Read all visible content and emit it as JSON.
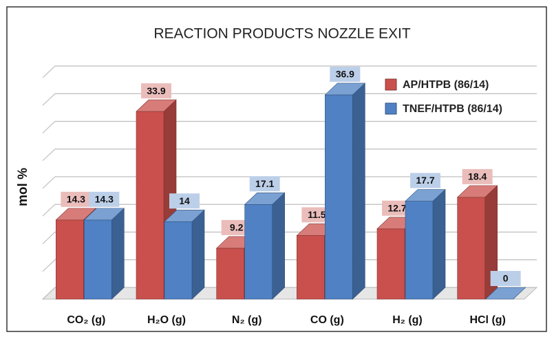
{
  "chart_data": {
    "type": "bar3d",
    "title": "REACTION PRODUCTS NOZZLE EXIT",
    "y_label": "mol %",
    "categories": [
      "CO₂ (g)",
      "H₂O (g)",
      "N₂ (g)",
      "CO (g)",
      "H₂ (g)",
      "HCl (g)"
    ],
    "series": [
      {
        "name": "AP/HTPB (86/14)",
        "color": "#c9504c",
        "values": [
          14.3,
          33.9,
          9.2,
          11.5,
          12.7,
          18.4
        ]
      },
      {
        "name": "TNEF/HTPB (86/14)",
        "color": "#4f81c4",
        "values": [
          14.3,
          14,
          17.1,
          36.9,
          17.7,
          0
        ]
      }
    ],
    "ylim": [
      0,
      40
    ],
    "yticks": [
      0,
      5,
      10,
      15,
      20,
      25,
      30,
      35,
      40
    ],
    "grid": true,
    "legend": "top-right"
  }
}
